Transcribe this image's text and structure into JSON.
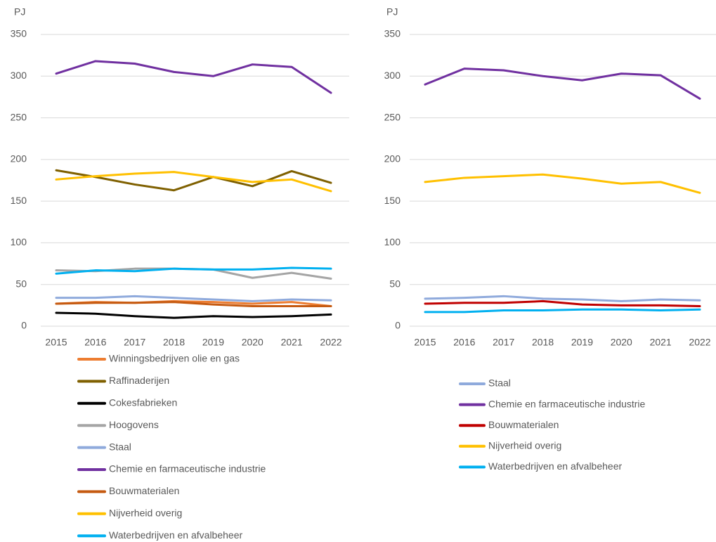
{
  "chart_data": [
    {
      "type": "line",
      "y_label": "PJ",
      "categories": [
        "2015",
        "2016",
        "2017",
        "2018",
        "2019",
        "2020",
        "2021",
        "2022"
      ],
      "ylim": [
        0,
        350
      ],
      "yticks": [
        0,
        50,
        100,
        150,
        200,
        250,
        300,
        350
      ],
      "grid": true,
      "series": [
        {
          "name": "Winningsbedrijven olie en gas",
          "color": "#ED7D31",
          "values": [
            27,
            29,
            28,
            30,
            29,
            27,
            29,
            24
          ]
        },
        {
          "name": "Raffinaderijen",
          "color": "#7F6000",
          "values": [
            187,
            179,
            170,
            163,
            179,
            168,
            186,
            172
          ]
        },
        {
          "name": "Cokesfabrieken",
          "color": "#000000",
          "values": [
            16,
            15,
            12,
            10,
            12,
            11,
            12,
            14
          ]
        },
        {
          "name": "Hoogovens",
          "color": "#A5A5A5",
          "values": [
            67,
            66,
            69,
            69,
            68,
            58,
            64,
            57
          ]
        },
        {
          "name": "Staal",
          "color": "#8FAADC",
          "values": [
            34,
            34,
            36,
            34,
            32,
            30,
            32,
            31
          ]
        },
        {
          "name": "Chemie en farmaceutische industrie",
          "color": "#7030A0",
          "values": [
            303,
            318,
            315,
            305,
            300,
            314,
            311,
            280
          ]
        },
        {
          "name": "Bouwmaterialen",
          "color": "#C55A11",
          "values": [
            27,
            28,
            28,
            29,
            26,
            24,
            24,
            24
          ]
        },
        {
          "name": "Nijverheid overig",
          "color": "#FFC000",
          "values": [
            176,
            180,
            183,
            185,
            179,
            173,
            176,
            162
          ]
        },
        {
          "name": "Waterbedrijven en afvalbeheer",
          "color": "#00B0F0",
          "values": [
            63,
            67,
            66,
            69,
            68,
            68,
            70,
            69
          ]
        }
      ]
    },
    {
      "type": "line",
      "y_label": "PJ",
      "categories": [
        "2015",
        "2016",
        "2017",
        "2018",
        "2019",
        "2020",
        "2021",
        "2022"
      ],
      "ylim": [
        0,
        350
      ],
      "yticks": [
        0,
        50,
        100,
        150,
        200,
        250,
        300,
        350
      ],
      "grid": true,
      "series": [
        {
          "name": "Staal",
          "color": "#8FAADC",
          "values": [
            33,
            34,
            36,
            33,
            32,
            30,
            32,
            31
          ]
        },
        {
          "name": "Chemie en farmaceutische industrie",
          "color": "#7030A0",
          "values": [
            290,
            309,
            307,
            300,
            295,
            303,
            301,
            273
          ]
        },
        {
          "name": "Bouwmaterialen",
          "color": "#C00000",
          "values": [
            27,
            28,
            28,
            30,
            26,
            25,
            25,
            24
          ]
        },
        {
          "name": "Nijverheid overig",
          "color": "#FFC000",
          "values": [
            173,
            178,
            180,
            182,
            177,
            171,
            173,
            160
          ]
        },
        {
          "name": "Waterbedrijven en afvalbeheer",
          "color": "#00B0F0",
          "values": [
            17,
            17,
            19,
            19,
            20,
            20,
            19,
            20
          ]
        }
      ]
    }
  ]
}
